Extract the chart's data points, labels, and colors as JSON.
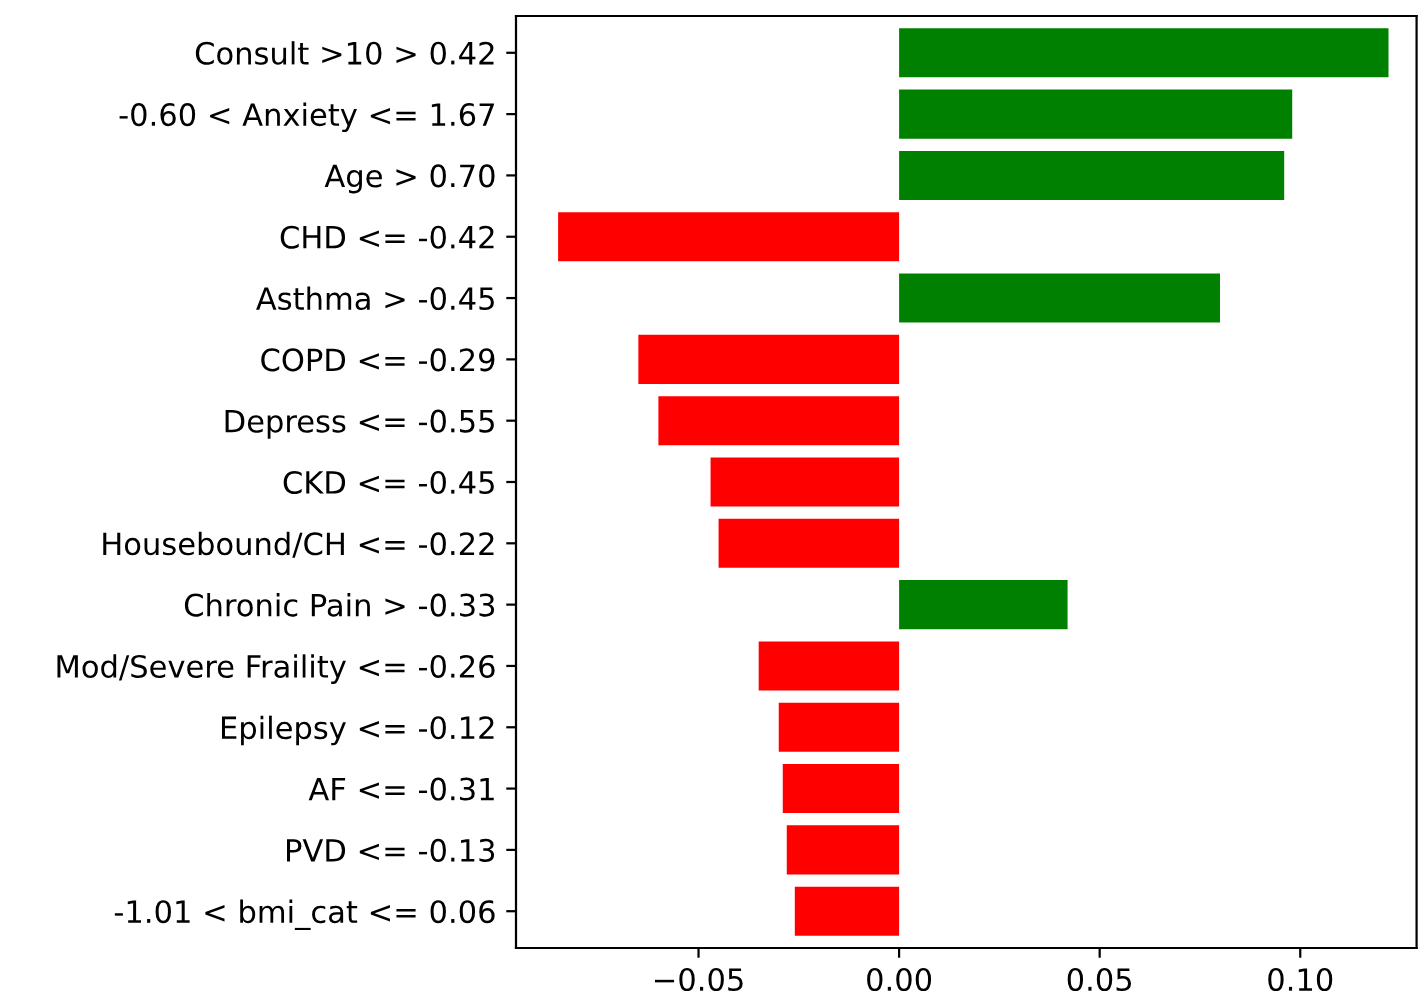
{
  "chart_data": {
    "type": "bar",
    "orientation": "horizontal",
    "categories": [
      "Consult >10 > 0.42",
      "-0.60 < Anxiety <= 1.67",
      "Age > 0.70",
      "CHD <= -0.42",
      "Asthma > -0.45",
      "COPD <= -0.29",
      "Depress <= -0.55",
      "CKD <= -0.45",
      "Housebound/CH <= -0.22",
      "Chronic Pain > -0.33",
      "Mod/Severe Fraility <= -0.26",
      "Epilepsy <= -0.12",
      "AF <= -0.31",
      "PVD <= -0.13",
      "-1.01 < bmi_cat <= 0.06"
    ],
    "values": [
      0.122,
      0.098,
      0.096,
      -0.085,
      0.08,
      -0.065,
      -0.06,
      -0.047,
      -0.045,
      0.042,
      -0.035,
      -0.03,
      -0.029,
      -0.028,
      -0.026
    ],
    "colors": [
      "#008000",
      "#008000",
      "#008000",
      "#ff0000",
      "#008000",
      "#ff0000",
      "#ff0000",
      "#ff0000",
      "#ff0000",
      "#008000",
      "#ff0000",
      "#ff0000",
      "#ff0000",
      "#ff0000",
      "#ff0000"
    ],
    "xlim": [
      -0.0955,
      0.129
    ],
    "xticks": [
      {
        "value": -0.05,
        "label": "−0.05"
      },
      {
        "value": 0.0,
        "label": "0.00"
      },
      {
        "value": 0.05,
        "label": "0.05"
      },
      {
        "value": 0.1,
        "label": "0.10"
      }
    ],
    "grid": false,
    "legend": false
  }
}
